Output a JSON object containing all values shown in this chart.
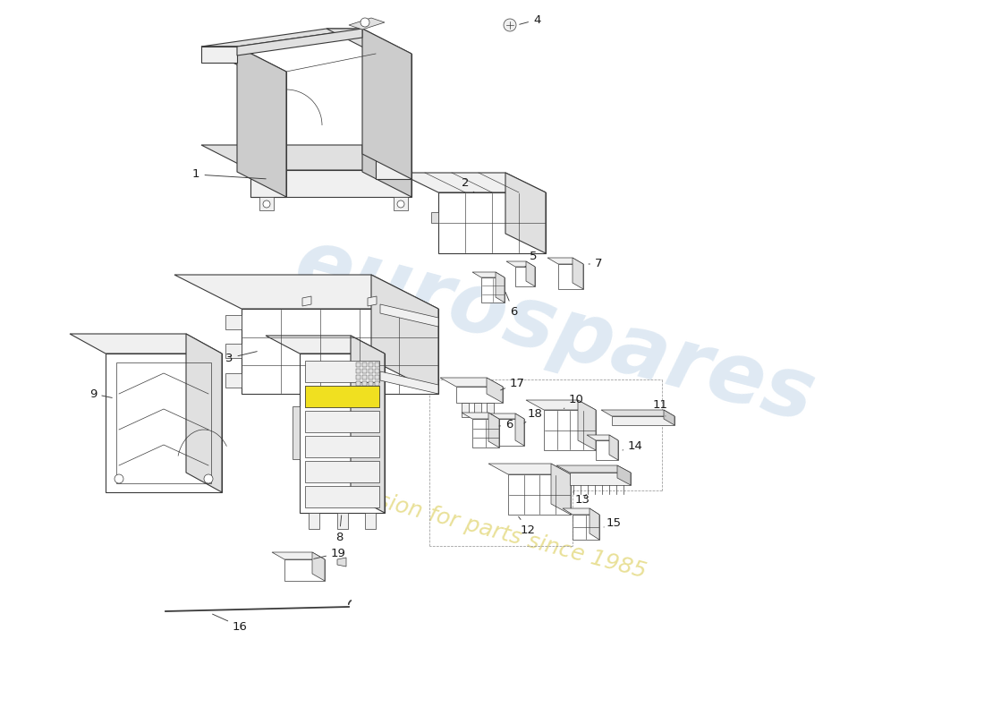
{
  "bg_color": "#ffffff",
  "line_color": "#3a3a3a",
  "face_white": "#ffffff",
  "face_light": "#f0f0f0",
  "face_mid": "#e0e0e0",
  "face_dark": "#cccccc",
  "label_color": "#1a1a1a",
  "wm1_text": "eurospares",
  "wm2_text": "a passion for parts since 1985",
  "wm1_color": "#c5d8ea",
  "wm2_color": "#ddd060",
  "wm1_alpha": 0.55,
  "wm2_alpha": 0.65,
  "wm1_size": 68,
  "wm2_size": 18,
  "label_fontsize": 9.5,
  "lw_main": 0.8,
  "lw_thin": 0.5,
  "lw_grid": 0.45
}
